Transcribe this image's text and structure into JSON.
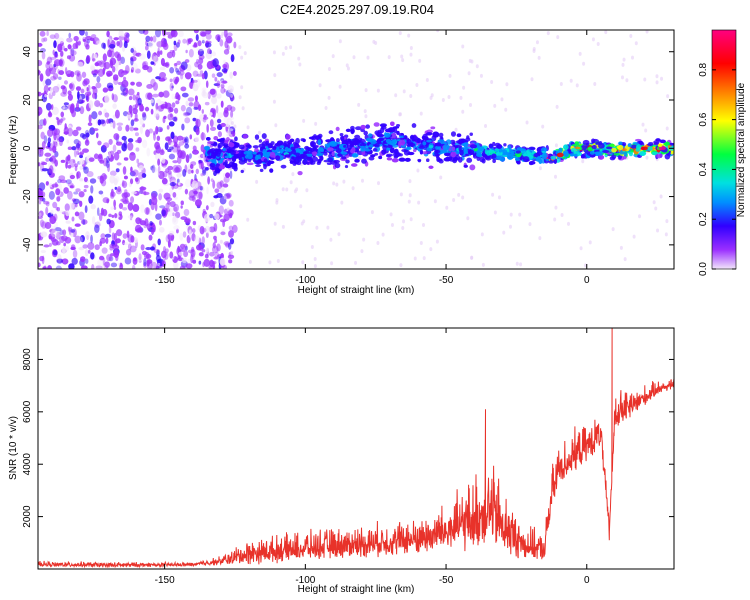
{
  "title": "C2E4.2025.297.09.19.R04",
  "chart_data": [
    {
      "type": "heatmap",
      "xlabel": "Height of straight line (km)",
      "ylabel": "Frequency (Hz)",
      "xlim": [
        -195,
        31
      ],
      "ylim": [
        -50,
        49
      ],
      "xticks": [
        -150,
        -100,
        -50,
        0
      ],
      "yticks": [
        -40,
        -20,
        0,
        20,
        40
      ],
      "colorbar": {
        "label": "Normalized spectral amplitude",
        "range": [
          0,
          0.96
        ],
        "ticks": [
          0.0,
          0.2,
          0.4,
          0.6,
          0.8
        ],
        "colors": [
          "#f2e6fa",
          "#9b30ff",
          "#3000ff",
          "#0090ff",
          "#00e0e0",
          "#00ff40",
          "#ffff00",
          "#ff8000",
          "#ff0000",
          "#ff0080"
        ]
      },
      "ridge": {
        "description_x": [
          -130,
          -100,
          -70,
          -50,
          -30,
          -15,
          -12,
          -5,
          0,
          10,
          20,
          30
        ],
        "freq_center": [
          -3,
          -2,
          3,
          0,
          -2,
          -3,
          -4,
          0,
          0,
          -1,
          0,
          0
        ]
      }
    },
    {
      "type": "line",
      "xlabel": "Height of straight line (km)",
      "ylabel": "SNR (10 * v/v)",
      "xlim": [
        -195,
        31
      ],
      "ylim": [
        0,
        9200
      ],
      "xticks": [
        -150,
        -100,
        -50,
        0
      ],
      "yticks": [
        2000,
        4000,
        6000,
        8000
      ],
      "color": "#e8322a",
      "envelope": {
        "x": [
          -195,
          -170,
          -140,
          -130,
          -120,
          -100,
          -80,
          -60,
          -50,
          -40,
          -35,
          -30,
          -25,
          -20,
          -15,
          -13,
          -10,
          -5,
          0,
          5,
          8,
          10,
          15,
          20,
          25,
          31
        ],
        "base": [
          150,
          120,
          150,
          250,
          450,
          650,
          800,
          950,
          1200,
          1500,
          1900,
          1300,
          900,
          700,
          600,
          2200,
          3600,
          4100,
          4500,
          5000,
          1400,
          5700,
          6000,
          6400,
          6800,
          7000
        ],
        "amp": [
          150,
          150,
          100,
          250,
          700,
          800,
          900,
          1000,
          1400,
          2000,
          2600,
          2000,
          1200,
          900,
          700,
          1500,
          1200,
          1200,
          1000,
          900,
          400,
          1200,
          900,
          600,
          400,
          300
        ]
      },
      "peaks": [
        {
          "x": 9,
          "y": 9200
        },
        {
          "x": 8,
          "y": 1100
        },
        {
          "x": -36,
          "y": 6100
        }
      ]
    }
  ]
}
